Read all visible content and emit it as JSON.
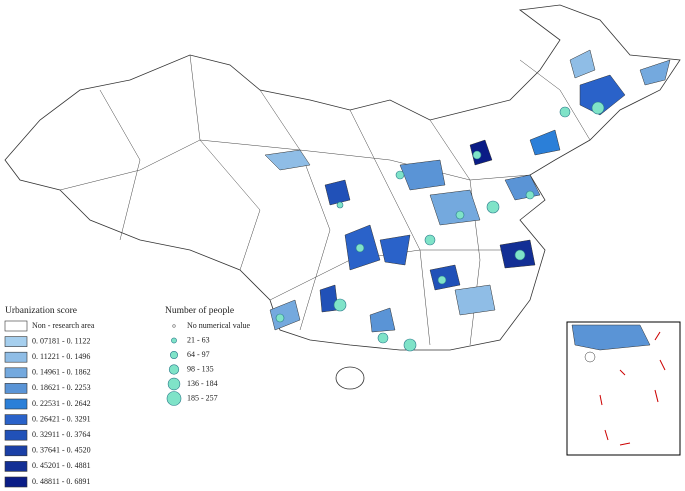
{
  "choropleth_legend": {
    "title": "Urbanization score",
    "items": [
      {
        "label": "Non - research area",
        "color": "#ffffff"
      },
      {
        "label": "0. 07181 - 0. 1122",
        "color": "#a6cfee"
      },
      {
        "label": "0. 11221 - 0. 1496",
        "color": "#8fbde6"
      },
      {
        "label": "0. 14961 - 0. 1862",
        "color": "#74a9de"
      },
      {
        "label": "0. 18621 - 0. 2253",
        "color": "#5a94d6"
      },
      {
        "label": "0. 22531 - 0. 2642",
        "color": "#2b7fd8"
      },
      {
        "label": "0. 26421 - 0. 3291",
        "color": "#2a62c9"
      },
      {
        "label": "0. 32911 - 0. 3764",
        "color": "#2151b8"
      },
      {
        "label": "0. 37641 - 0. 4520",
        "color": "#1a3fa6"
      },
      {
        "label": "0. 45201 - 0. 4881",
        "color": "#132f95"
      },
      {
        "label": "0. 48811 - 0. 6891",
        "color": "#0a1c86"
      }
    ]
  },
  "bubble_legend": {
    "title": "Number of people",
    "items": [
      {
        "label": "No numerical value"
      },
      {
        "label": "21 - 63"
      },
      {
        "label": "64 - 97"
      },
      {
        "label": "98 - 135"
      },
      {
        "label": "136 - 184"
      },
      {
        "label": "185 - 257"
      }
    ]
  }
}
